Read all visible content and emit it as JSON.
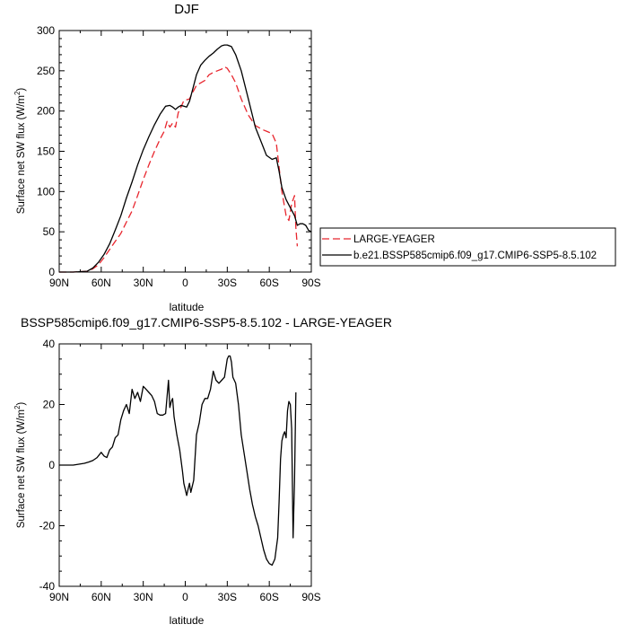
{
  "chart_data": [
    {
      "type": "line",
      "title": "DJF",
      "xlabel": "latitude",
      "ylabel": "Surface net SW flux (W/m",
      "ylabel_sup": "2",
      "ylabel_close": ")",
      "xlim": [
        90,
        -90
      ],
      "ylim": [
        0,
        300
      ],
      "xticks": [
        {
          "value": 90,
          "label": "90N"
        },
        {
          "value": 60,
          "label": "60N"
        },
        {
          "value": 30,
          "label": "30N"
        },
        {
          "value": 0,
          "label": "0"
        },
        {
          "value": -30,
          "label": "30S"
        },
        {
          "value": -60,
          "label": "60S"
        },
        {
          "value": -90,
          "label": "90S"
        }
      ],
      "yticks": [
        0,
        50,
        100,
        150,
        200,
        250,
        300
      ],
      "legend": "right",
      "series": [
        {
          "name": "LARGE-YEAGER",
          "color": "#e8262e",
          "dash": "dashed",
          "x": [
            90,
            80,
            70,
            66,
            62,
            58,
            54,
            50,
            46,
            42,
            38,
            34,
            30,
            26,
            22,
            18,
            15,
            13,
            11,
            9,
            7,
            5,
            3,
            1,
            -1,
            -3,
            -5,
            -8,
            -11,
            -14,
            -17,
            -20,
            -23,
            -26,
            -28,
            -30,
            -33,
            -36,
            -40,
            -45,
            -50,
            -55,
            -58,
            -62,
            -65,
            -67,
            -69,
            -72,
            -74,
            -76,
            -78,
            -79,
            -80
          ],
          "y": [
            0,
            0,
            1,
            4,
            9,
            18,
            28,
            38,
            48,
            62,
            76,
            95,
            115,
            133,
            150,
            165,
            175,
            187,
            180,
            185,
            180,
            198,
            205,
            213,
            214,
            215,
            222,
            232,
            235,
            238,
            245,
            248,
            250,
            252,
            255,
            253,
            245,
            235,
            215,
            195,
            182,
            177,
            175,
            172,
            160,
            130,
            100,
            70,
            64,
            85,
            95,
            55,
            32
          ]
        },
        {
          "name": "b.e21.BSSP585cmip6.f09_g17.CMIP6-SSP5-8.5.102",
          "color": "#000000",
          "dash": "solid",
          "x": [
            90,
            80,
            70,
            66,
            62,
            58,
            54,
            50,
            46,
            42,
            38,
            34,
            30,
            26,
            22,
            18,
            14,
            11,
            9,
            7,
            5,
            3,
            1,
            -1,
            -3,
            -5,
            -8,
            -11,
            -14,
            -17,
            -20,
            -23,
            -26,
            -28,
            -30,
            -33,
            -36,
            -40,
            -45,
            -50,
            -55,
            -58,
            -62,
            -65,
            -67,
            -69,
            -72,
            -75,
            -78,
            -80,
            -82,
            -84,
            -86,
            -88,
            -90
          ],
          "y": [
            0,
            0,
            1,
            5,
            12,
            22,
            35,
            52,
            70,
            92,
            112,
            133,
            152,
            168,
            183,
            196,
            206,
            207,
            205,
            202,
            205,
            207,
            206,
            205,
            212,
            225,
            245,
            257,
            263,
            268,
            272,
            277,
            281,
            282,
            282,
            280,
            270,
            250,
            215,
            180,
            158,
            145,
            140,
            142,
            125,
            105,
            90,
            80,
            70,
            58,
            60,
            60,
            58,
            52,
            50
          ]
        }
      ]
    },
    {
      "type": "line",
      "title": "BSSP585cmip6.f09_g17.CMIP6-SSP5-8.5.102 - LARGE-YEAGER",
      "xlabel": "latitude",
      "ylabel": "Surface net SW flux (W/m",
      "ylabel_sup": "2",
      "ylabel_close": ")",
      "xlim": [
        90,
        -90
      ],
      "ylim": [
        -40,
        40
      ],
      "xticks": [
        {
          "value": 90,
          "label": "90N"
        },
        {
          "value": 60,
          "label": "60N"
        },
        {
          "value": 30,
          "label": "30N"
        },
        {
          "value": 0,
          "label": "0"
        },
        {
          "value": -30,
          "label": "30S"
        },
        {
          "value": -60,
          "label": "60S"
        },
        {
          "value": -90,
          "label": "90S"
        }
      ],
      "yticks": [
        -40,
        -20,
        0,
        20,
        40
      ],
      "series": [
        {
          "color": "#000000",
          "dash": "solid",
          "x": [
            90,
            84,
            80,
            76,
            72,
            69,
            66,
            63,
            60,
            58,
            56,
            54,
            52,
            50,
            48,
            46,
            44,
            42,
            40,
            38,
            36,
            34,
            32,
            30,
            28,
            26,
            24,
            22,
            20,
            18,
            16,
            14,
            12,
            11,
            10,
            9,
            8,
            6,
            4,
            2,
            1,
            -1,
            -2,
            -3,
            -4,
            -6,
            -8,
            -10,
            -12,
            -14,
            -16,
            -18,
            -20,
            -22,
            -24,
            -26,
            -28,
            -30,
            -31,
            -32,
            -33,
            -34,
            -36,
            -38,
            -40,
            -44,
            -46,
            -48,
            -50,
            -52,
            -54,
            -56,
            -58,
            -60,
            -62,
            -64,
            -66,
            -67,
            -68,
            -69,
            -70,
            -71,
            -72,
            -73,
            -74,
            -75,
            -76,
            -77,
            -78,
            -79
          ],
          "y": [
            0,
            0,
            0,
            0.3,
            0.6,
            1.0,
            1.5,
            2.5,
            4.2,
            3,
            2.5,
            5,
            6,
            9,
            10,
            15,
            18,
            20,
            17,
            25,
            22,
            24,
            21,
            26,
            25,
            24,
            23,
            21,
            17,
            16.5,
            16.5,
            17,
            28,
            19,
            21,
            22,
            16,
            10,
            5,
            -2,
            -6,
            -10,
            -8,
            -6,
            -9,
            -5,
            10,
            14,
            20,
            22,
            22,
            25,
            31,
            28,
            27,
            28,
            29,
            35,
            36,
            36,
            34,
            29,
            27,
            20,
            10,
            -2,
            -8,
            -13,
            -17,
            -20,
            -24,
            -28,
            -31,
            -32.5,
            -33,
            -31,
            -24,
            -12,
            2,
            8,
            10,
            11,
            9,
            18,
            21,
            20,
            12,
            -24,
            -5,
            24
          ]
        }
      ]
    }
  ]
}
